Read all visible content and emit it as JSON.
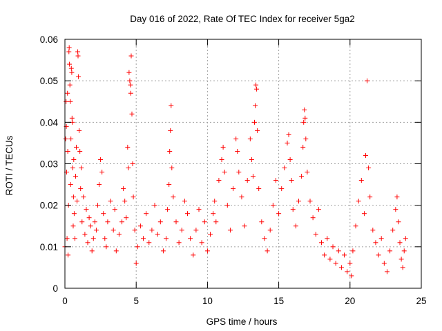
{
  "chart_data": {
    "type": "scatter",
    "title": "Day 016 of 2022, Rate Of TEC Index for receiver 5ga2",
    "xlabel": "GPS time / hours",
    "ylabel": "ROTI / TECUs",
    "xlim": [
      0,
      25
    ],
    "ylim": [
      0,
      0.06
    ],
    "x_ticks": [
      0,
      5,
      10,
      15,
      20,
      25
    ],
    "x_tick_labels": [
      "0",
      "5",
      "10",
      "15",
      "20",
      "25"
    ],
    "y_ticks": [
      0,
      0.01,
      0.02,
      0.03,
      0.04,
      0.05,
      0.06
    ],
    "y_tick_labels": [
      "0",
      "0.01",
      "0.02",
      "0.03",
      "0.04",
      "0.05",
      "0.06"
    ],
    "grid": true,
    "marker": "+",
    "color": "#ff0000",
    "series": [
      {
        "name": "ROTI",
        "points": [
          [
            0.0,
            0.01
          ],
          [
            0.05,
            0.036
          ],
          [
            0.08,
            0.045
          ],
          [
            0.1,
            0.039
          ],
          [
            0.12,
            0.028
          ],
          [
            0.15,
            0.012
          ],
          [
            0.18,
            0.047
          ],
          [
            0.2,
            0.033
          ],
          [
            0.22,
            0.008
          ],
          [
            0.25,
            0.02
          ],
          [
            0.28,
            0.057
          ],
          [
            0.3,
            0.058
          ],
          [
            0.32,
            0.054
          ],
          [
            0.35,
            0.049
          ],
          [
            0.38,
            0.045
          ],
          [
            0.4,
            0.025
          ],
          [
            0.42,
            0.036
          ],
          [
            0.45,
            0.053
          ],
          [
            0.48,
            0.052
          ],
          [
            0.5,
            0.041
          ],
          [
            0.52,
            0.04
          ],
          [
            0.55,
            0.029
          ],
          [
            0.58,
            0.015
          ],
          [
            0.6,
            0.022
          ],
          [
            0.62,
            0.031
          ],
          [
            0.65,
            0.018
          ],
          [
            0.7,
            0.012
          ],
          [
            0.75,
            0.027
          ],
          [
            0.8,
            0.034
          ],
          [
            0.85,
            0.021
          ],
          [
            0.9,
            0.057
          ],
          [
            0.92,
            0.056
          ],
          [
            0.95,
            0.051
          ],
          [
            1.0,
            0.038
          ],
          [
            1.05,
            0.033
          ],
          [
            1.1,
            0.024
          ],
          [
            1.15,
            0.029
          ],
          [
            1.2,
            0.016
          ],
          [
            1.3,
            0.022
          ],
          [
            1.4,
            0.013
          ],
          [
            1.5,
            0.019
          ],
          [
            1.6,
            0.011
          ],
          [
            1.7,
            0.017
          ],
          [
            1.8,
            0.015
          ],
          [
            1.9,
            0.009
          ],
          [
            2.0,
            0.012
          ],
          [
            2.1,
            0.016
          ],
          [
            2.2,
            0.014
          ],
          [
            2.3,
            0.02
          ],
          [
            2.4,
            0.025
          ],
          [
            2.5,
            0.031
          ],
          [
            2.6,
            0.028
          ],
          [
            2.7,
            0.018
          ],
          [
            2.8,
            0.012
          ],
          [
            2.9,
            0.01
          ],
          [
            3.0,
            0.016
          ],
          [
            3.2,
            0.021
          ],
          [
            3.4,
            0.014
          ],
          [
            3.5,
            0.019
          ],
          [
            3.6,
            0.009
          ],
          [
            3.8,
            0.013
          ],
          [
            4.0,
            0.016
          ],
          [
            4.1,
            0.024
          ],
          [
            4.2,
            0.021
          ],
          [
            4.3,
            0.017
          ],
          [
            4.4,
            0.034
          ],
          [
            4.45,
            0.029
          ],
          [
            4.5,
            0.052
          ],
          [
            4.55,
            0.05
          ],
          [
            4.6,
            0.049
          ],
          [
            4.62,
            0.047
          ],
          [
            4.65,
            0.056
          ],
          [
            4.7,
            0.042
          ],
          [
            4.75,
            0.03
          ],
          [
            4.8,
            0.022
          ],
          [
            4.9,
            0.014
          ],
          [
            5.0,
            0.006
          ],
          [
            5.1,
            0.01
          ],
          [
            5.3,
            0.015
          ],
          [
            5.5,
            0.012
          ],
          [
            5.7,
            0.018
          ],
          [
            5.9,
            0.011
          ],
          [
            6.1,
            0.014
          ],
          [
            6.3,
            0.02
          ],
          [
            6.5,
            0.013
          ],
          [
            6.7,
            0.016
          ],
          [
            6.9,
            0.009
          ],
          [
            7.1,
            0.012
          ],
          [
            7.2,
            0.019
          ],
          [
            7.3,
            0.025
          ],
          [
            7.35,
            0.033
          ],
          [
            7.4,
            0.038
          ],
          [
            7.45,
            0.044
          ],
          [
            7.5,
            0.029
          ],
          [
            7.6,
            0.022
          ],
          [
            7.8,
            0.016
          ],
          [
            8.0,
            0.011
          ],
          [
            8.2,
            0.014
          ],
          [
            8.4,
            0.021
          ],
          [
            8.6,
            0.018
          ],
          [
            8.8,
            0.012
          ],
          [
            9.0,
            0.008
          ],
          [
            9.2,
            0.014
          ],
          [
            9.4,
            0.019
          ],
          [
            9.6,
            0.011
          ],
          [
            9.8,
            0.016
          ],
          [
            10.0,
            0.009
          ],
          [
            10.2,
            0.013
          ],
          [
            10.4,
            0.018
          ],
          [
            10.5,
            0.021
          ],
          [
            10.6,
            0.016
          ],
          [
            10.8,
            0.026
          ],
          [
            11.0,
            0.031
          ],
          [
            11.1,
            0.034
          ],
          [
            11.2,
            0.028
          ],
          [
            11.4,
            0.02
          ],
          [
            11.6,
            0.014
          ],
          [
            11.8,
            0.024
          ],
          [
            12.0,
            0.036
          ],
          [
            12.1,
            0.033
          ],
          [
            12.2,
            0.028
          ],
          [
            12.4,
            0.022
          ],
          [
            12.6,
            0.015
          ],
          [
            12.8,
            0.026
          ],
          [
            13.0,
            0.036
          ],
          [
            13.1,
            0.031
          ],
          [
            13.2,
            0.027
          ],
          [
            13.3,
            0.04
          ],
          [
            13.35,
            0.044
          ],
          [
            13.4,
            0.049
          ],
          [
            13.45,
            0.048
          ],
          [
            13.5,
            0.038
          ],
          [
            13.6,
            0.024
          ],
          [
            13.8,
            0.016
          ],
          [
            14.0,
            0.012
          ],
          [
            14.2,
            0.009
          ],
          [
            14.4,
            0.014
          ],
          [
            14.6,
            0.02
          ],
          [
            14.8,
            0.026
          ],
          [
            15.0,
            0.018
          ],
          [
            15.2,
            0.024
          ],
          [
            15.4,
            0.029
          ],
          [
            15.6,
            0.035
          ],
          [
            15.7,
            0.037
          ],
          [
            15.8,
            0.031
          ],
          [
            15.9,
            0.026
          ],
          [
            16.0,
            0.019
          ],
          [
            16.2,
            0.015
          ],
          [
            16.4,
            0.021
          ],
          [
            16.6,
            0.027
          ],
          [
            16.7,
            0.034
          ],
          [
            16.75,
            0.04
          ],
          [
            16.8,
            0.043
          ],
          [
            16.85,
            0.041
          ],
          [
            16.9,
            0.036
          ],
          [
            17.0,
            0.028
          ],
          [
            17.2,
            0.021
          ],
          [
            17.4,
            0.017
          ],
          [
            17.6,
            0.013
          ],
          [
            17.8,
            0.019
          ],
          [
            18.0,
            0.011
          ],
          [
            18.2,
            0.008
          ],
          [
            18.4,
            0.012
          ],
          [
            18.6,
            0.007
          ],
          [
            18.8,
            0.01
          ],
          [
            19.0,
            0.006
          ],
          [
            19.2,
            0.009
          ],
          [
            19.4,
            0.005
          ],
          [
            19.6,
            0.008
          ],
          [
            19.8,
            0.004
          ],
          [
            20.0,
            0.006
          ],
          [
            20.1,
            0.003
          ],
          [
            20.2,
            0.009
          ],
          [
            20.4,
            0.015
          ],
          [
            20.6,
            0.021
          ],
          [
            20.8,
            0.026
          ],
          [
            21.0,
            0.018
          ],
          [
            21.1,
            0.032
          ],
          [
            21.2,
            0.05
          ],
          [
            21.3,
            0.029
          ],
          [
            21.4,
            0.022
          ],
          [
            21.6,
            0.014
          ],
          [
            21.8,
            0.011
          ],
          [
            22.0,
            0.008
          ],
          [
            22.2,
            0.012
          ],
          [
            22.4,
            0.006
          ],
          [
            22.6,
            0.004
          ],
          [
            22.8,
            0.009
          ],
          [
            23.0,
            0.014
          ],
          [
            23.2,
            0.019
          ],
          [
            23.3,
            0.022
          ],
          [
            23.4,
            0.016
          ],
          [
            23.5,
            0.011
          ],
          [
            23.6,
            0.007
          ],
          [
            23.7,
            0.005
          ],
          [
            23.8,
            0.009
          ],
          [
            23.9,
            0.012
          ]
        ]
      }
    ]
  }
}
